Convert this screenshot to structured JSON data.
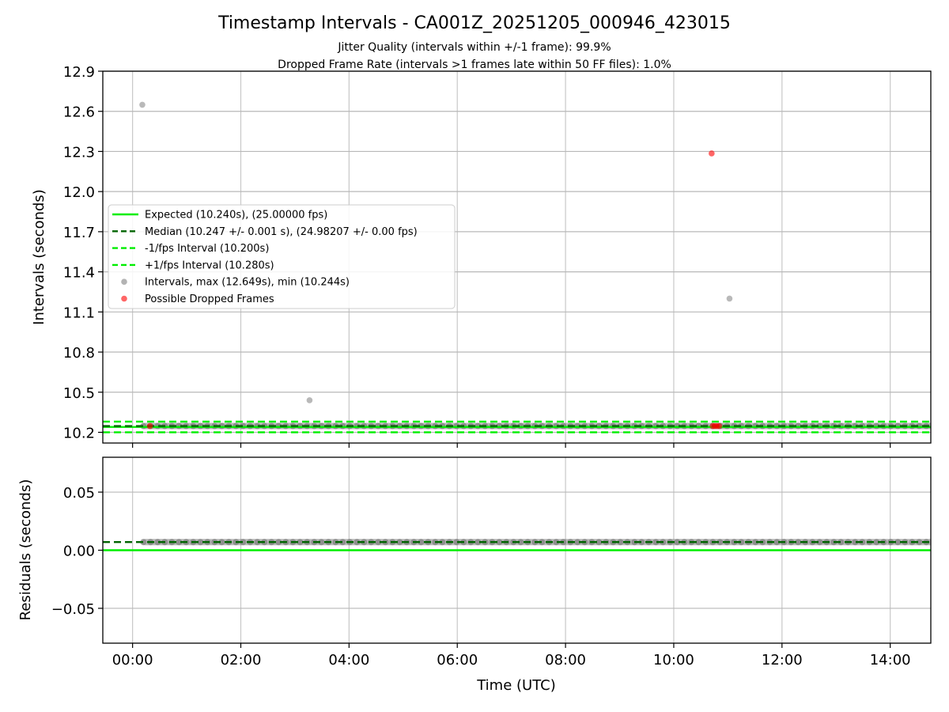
{
  "chart_data": [
    {
      "type": "scatter",
      "title": "Timestamp Intervals - CA001Z_20251205_000946_423015",
      "subtitle_lines": [
        "Jitter Quality (intervals within +/-1 frame): 99.9%",
        "Dropped Frame Rate (intervals >1 frames late within 50 FF files): 1.0%"
      ],
      "xlabel": "",
      "ylabel": "Intervals (seconds)",
      "xlim_hours": [
        -0.55,
        14.75
      ],
      "ylim": [
        10.12,
        12.9
      ],
      "x_ticks": [
        {
          "value": 0,
          "label": "00:00"
        },
        {
          "value": 2,
          "label": "02:00"
        },
        {
          "value": 4,
          "label": "04:00"
        },
        {
          "value": 6,
          "label": "06:00"
        },
        {
          "value": 8,
          "label": "08:00"
        },
        {
          "value": 10,
          "label": "10:00"
        },
        {
          "value": 12,
          "label": "12:00"
        },
        {
          "value": 14,
          "label": "14:00"
        }
      ],
      "y_ticks": [
        {
          "value": 10.2,
          "label": "10.2"
        },
        {
          "value": 10.5,
          "label": "10.5"
        },
        {
          "value": 10.8,
          "label": "10.8"
        },
        {
          "value": 11.1,
          "label": "11.1"
        },
        {
          "value": 11.4,
          "label": "11.4"
        },
        {
          "value": 11.7,
          "label": "11.7"
        },
        {
          "value": 12.0,
          "label": "12.0"
        },
        {
          "value": 12.3,
          "label": "12.3"
        },
        {
          "value": 12.6,
          "label": "12.6"
        },
        {
          "value": 12.9,
          "label": "12.9"
        }
      ],
      "grid": true,
      "legend_placement": "center-left",
      "reference_lines": [
        {
          "name": "Expected (10.240s), (25.00000 fps)",
          "y": 10.24,
          "style": "solid",
          "color": "#00ee00"
        },
        {
          "name": "Median (10.247 +/- 0.001 s), (24.98207 +/- 0.00 fps)",
          "y": 10.247,
          "style": "dashed",
          "color": "#006400"
        },
        {
          "name": "-1/fps Interval (10.200s)",
          "y": 10.2,
          "style": "dashed",
          "color": "#00ee00"
        },
        {
          "name": "+1/fps Interval (10.280s)",
          "y": 10.28,
          "style": "dashed",
          "color": "#00ee00"
        }
      ],
      "series": [
        {
          "name": "Intervals, max (12.649s), min (10.244s)",
          "color": "#808080",
          "dense_band": {
            "x_start": 0.2,
            "x_end": 14.75,
            "y": 10.247
          },
          "points": [
            {
              "x": 0.18,
              "y": 12.649
            },
            {
              "x": 3.27,
              "y": 10.44
            },
            {
              "x": 11.03,
              "y": 11.2
            }
          ]
        },
        {
          "name": "Possible Dropped Frames",
          "color": "#ff0000",
          "points": [
            {
              "x": 0.32,
              "y": 10.247
            },
            {
              "x": 10.7,
              "y": 12.285
            },
            {
              "x": 10.72,
              "y": 10.247
            },
            {
              "x": 10.76,
              "y": 10.247
            },
            {
              "x": 10.8,
              "y": 10.247
            },
            {
              "x": 10.84,
              "y": 10.247
            }
          ]
        }
      ]
    },
    {
      "type": "scatter",
      "title": "",
      "xlabel": "Time (UTC)",
      "ylabel": "Residuals (seconds)",
      "xlim_hours": [
        -0.55,
        14.75
      ],
      "ylim": [
        -0.08,
        0.08
      ],
      "x_ticks": [
        {
          "value": 0,
          "label": "00:00"
        },
        {
          "value": 2,
          "label": "02:00"
        },
        {
          "value": 4,
          "label": "04:00"
        },
        {
          "value": 6,
          "label": "06:00"
        },
        {
          "value": 8,
          "label": "08:00"
        },
        {
          "value": 10,
          "label": "10:00"
        },
        {
          "value": 12,
          "label": "12:00"
        },
        {
          "value": 14,
          "label": "14:00"
        }
      ],
      "y_ticks": [
        {
          "value": 0.05,
          "label": "0.05"
        },
        {
          "value": 0.0,
          "label": "0.00"
        },
        {
          "value": -0.05,
          "label": "−0.05"
        }
      ],
      "grid": true,
      "reference_lines": [
        {
          "name": "",
          "y": 0.0,
          "style": "solid",
          "color": "#00ee00"
        },
        {
          "name": "",
          "y": 0.007,
          "style": "dashed",
          "color": "#006400"
        }
      ],
      "series": [
        {
          "name": "",
          "color": "#808080",
          "dense_band": {
            "x_start": 0.2,
            "x_end": 14.75,
            "y": 0.007
          }
        }
      ]
    }
  ]
}
